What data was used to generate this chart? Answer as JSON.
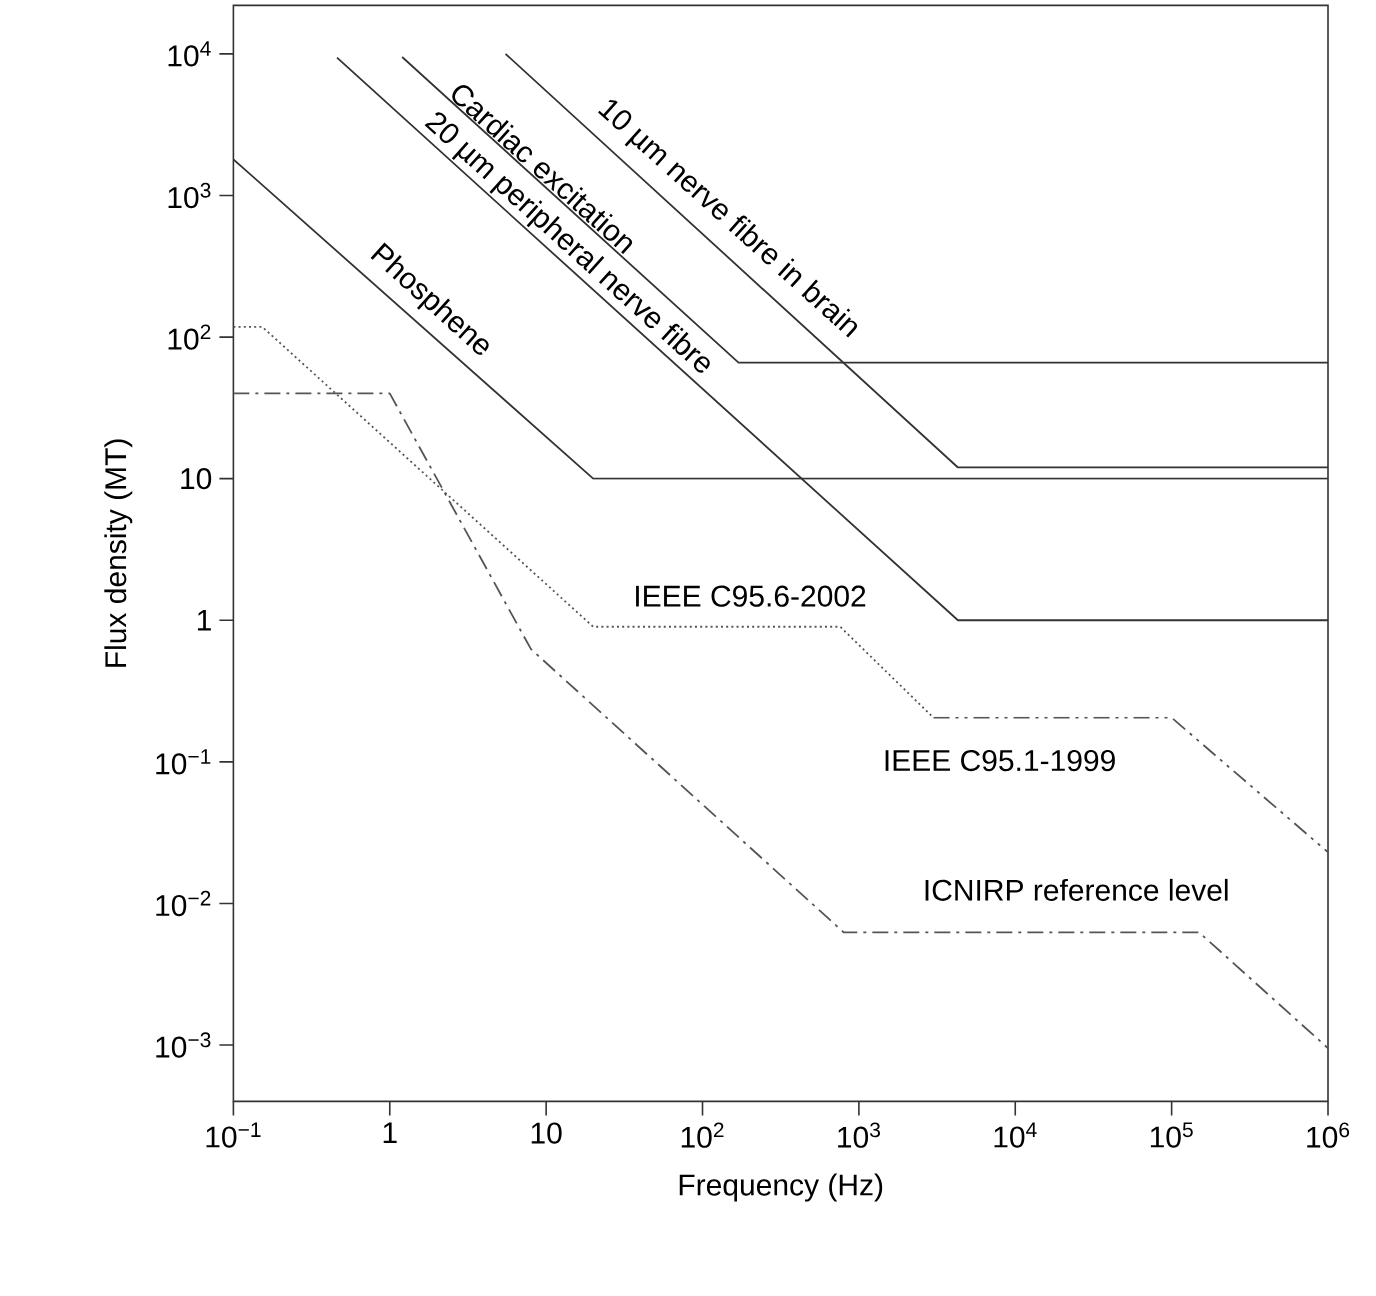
{
  "chart_data": {
    "type": "line",
    "xlabel": "Frequency (Hz)",
    "ylabel": "Flux density (MT)",
    "log": "xy",
    "grid": false,
    "marker": "none",
    "xlim": [
      0.1,
      1000000
    ],
    "ylim": [
      0.0004,
      22000
    ],
    "xticks": [
      {
        "value": 0.1,
        "label": "10$^{−1}$"
      },
      1,
      10,
      {
        "value": 100,
        "label": "10$^{2}$"
      },
      {
        "value": 1000,
        "label": "10$^{3}$"
      },
      {
        "value": 10000,
        "label": "10$^{4}$"
      },
      {
        "value": 100000,
        "label": "10$^{5}$"
      },
      {
        "value": 1000000,
        "label": "10$^{6}$"
      }
    ],
    "yticks": [
      {
        "value": 0.001,
        "label": "10$^{−3}$"
      },
      {
        "value": 0.01,
        "label": "10$^{−2}$"
      },
      {
        "value": 0.1,
        "label": "10$^{−1}$"
      },
      1,
      10,
      {
        "value": 100,
        "label": "10$^{2}$"
      },
      {
        "value": 1000,
        "label": "10$^{3}$"
      },
      {
        "value": 10000,
        "label": "10$^{4}$"
      }
    ],
    "series": [
      {
        "color": "#333333",
        "line_style": "solid",
        "x": [
          5.5,
          4300,
          1000000
        ],
        "values": [
          10000,
          12,
          12
        ]
      },
      {
        "color": "#333333",
        "line_style": "solid",
        "x": [
          1.2,
          170,
          1000000
        ],
        "values": [
          9500,
          66,
          66
        ]
      },
      {
        "color": "#333333",
        "line_style": "solid",
        "x": [
          0.46,
          4300,
          1000000
        ],
        "values": [
          9400,
          1,
          1
        ]
      },
      {
        "color": "#333333",
        "line_style": "solid",
        "x": [
          0.1,
          20,
          1000000
        ],
        "values": [
          1800,
          10,
          10
        ]
      },
      {
        "color": "#555555",
        "line_style": "dotted",
        "x": [
          0.1,
          0.153,
          20,
          760,
          3000
        ],
        "values": [
          118,
          118,
          0.9,
          0.9,
          0.205
        ]
      },
      {
        "color": "#555555",
        "line_style": "dashdotdot",
        "x": [
          3000,
          100000,
          1000000
        ],
        "values": [
          0.205,
          0.205,
          0.023
        ]
      },
      {
        "color": "#555555",
        "line_style": "dashdot",
        "x": [
          0.1,
          1,
          8,
          800,
          150000,
          1000000
        ],
        "values": [
          40,
          40,
          0.625,
          0.00625,
          0.00625,
          0.00095
        ]
      }
    ],
    "annotations": [
      "10 µm nerve fibre in brain",
      "Cardiac excitation",
      "20 µm peripheral nerve fibre",
      "Phosphene",
      "IEEE C95.6-2002",
      "IEEE C95.1-1999",
      "ICNIRP reference level"
    ]
  }
}
